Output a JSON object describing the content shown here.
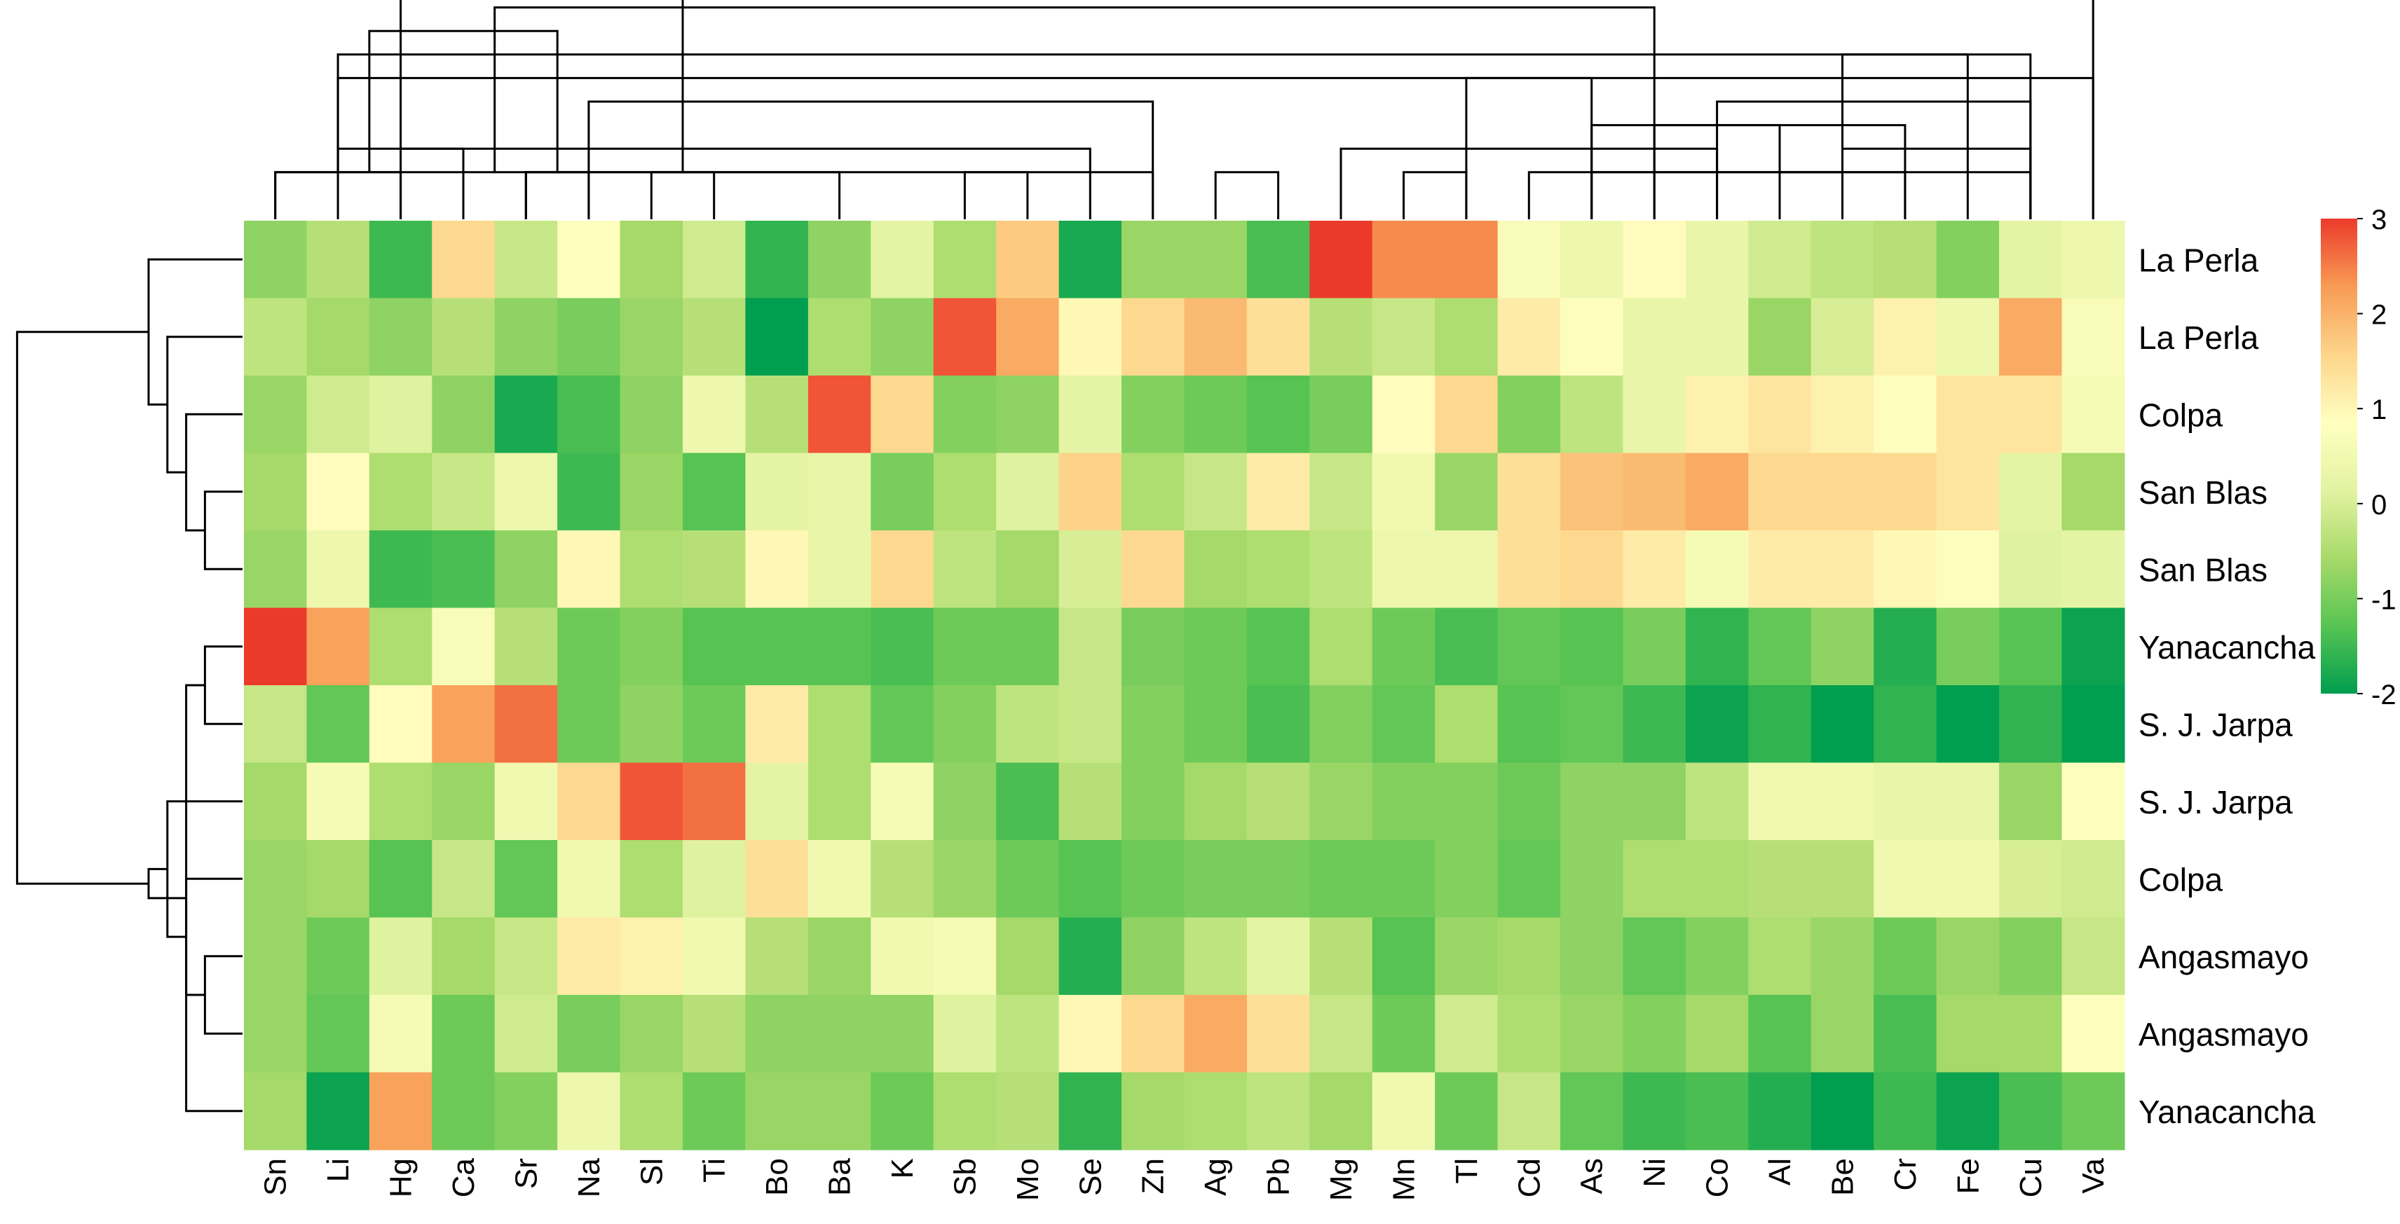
{
  "chart_data": {
    "type": "heatmap",
    "title": "",
    "columns": [
      "Sn",
      "Li",
      "Hg",
      "Ca",
      "Sr",
      "Na",
      "Sl",
      "Ti",
      "Bo",
      "Ba",
      "K",
      "Sb",
      "Mo",
      "Se",
      "Zn",
      "Ag",
      "Pb",
      "Mg",
      "Mn",
      "Tl",
      "Cd",
      "As",
      "Ni",
      "Co",
      "Al",
      "Be",
      "Cr",
      "Fe",
      "Cu",
      "Va"
    ],
    "rows": [
      "La Perla",
      "La Perla",
      "Colpa",
      "San Blas",
      "San Blas",
      "Yanacancha",
      "S. J. Jarpa",
      "S. J. Jarpa",
      "Colpa",
      "Angasmayo",
      "Angasmayo",
      "Yanacancha"
    ],
    "values": [
      [
        -0.8,
        -0.4,
        -1.5,
        1.5,
        -0.2,
        0.8,
        -0.6,
        -0.1,
        -1.6,
        -0.8,
        0.2,
        -0.5,
        1.7,
        -1.8,
        -0.7,
        -0.7,
        -1.4,
        3.0,
        2.4,
        2.4,
        0.7,
        0.4,
        0.9,
        0.3,
        -0.1,
        -0.3,
        -0.4,
        -0.9,
        0.2,
        0.4
      ],
      [
        -0.3,
        -0.6,
        -0.8,
        -0.4,
        -0.8,
        -1.0,
        -0.7,
        -0.4,
        -2.0,
        -0.5,
        -0.8,
        2.8,
        2.1,
        1.0,
        1.5,
        1.9,
        1.4,
        -0.4,
        -0.2,
        -0.5,
        1.2,
        0.8,
        0.3,
        0.3,
        -0.7,
        0.0,
        1.1,
        0.4,
        2.1,
        0.7
      ],
      [
        -0.7,
        -0.1,
        0.1,
        -0.8,
        -1.8,
        -1.4,
        -0.8,
        0.4,
        -0.4,
        2.8,
        1.5,
        -0.9,
        -0.8,
        0.2,
        -0.9,
        -1.1,
        -1.3,
        -1.0,
        0.9,
        1.5,
        -0.9,
        -0.3,
        0.3,
        1.1,
        1.3,
        1.1,
        0.8,
        1.3,
        1.3,
        0.6
      ],
      [
        -0.6,
        0.9,
        -0.5,
        -0.2,
        0.4,
        -1.5,
        -0.7,
        -1.3,
        0.2,
        0.3,
        -1.0,
        -0.5,
        0.1,
        1.6,
        -0.5,
        -0.2,
        1.2,
        -0.2,
        0.5,
        -0.7,
        1.4,
        1.8,
        1.9,
        2.1,
        1.5,
        1.5,
        1.5,
        1.3,
        0.2,
        -0.6
      ],
      [
        -0.7,
        0.4,
        -1.5,
        -1.4,
        -0.8,
        1.0,
        -0.5,
        -0.4,
        1.0,
        0.3,
        1.5,
        -0.3,
        -0.6,
        0.0,
        1.5,
        -0.6,
        -0.5,
        -0.3,
        0.4,
        0.4,
        1.4,
        1.5,
        1.2,
        0.6,
        1.2,
        1.2,
        1.0,
        0.8,
        0.1,
        0.2
      ],
      [
        3.0,
        2.2,
        -0.5,
        0.7,
        -0.4,
        -1.1,
        -0.9,
        -1.3,
        -1.3,
        -1.3,
        -1.4,
        -1.1,
        -1.1,
        -0.2,
        -1.0,
        -1.1,
        -1.3,
        -0.5,
        -1.1,
        -1.4,
        -1.2,
        -1.3,
        -1.0,
        -1.6,
        -1.2,
        -0.8,
        -1.7,
        -1.0,
        -1.3,
        -1.9
      ],
      [
        -0.2,
        -1.2,
        0.9,
        2.2,
        2.6,
        -1.1,
        -0.8,
        -1.1,
        1.2,
        -0.5,
        -1.2,
        -0.9,
        -0.3,
        -0.2,
        -0.9,
        -1.1,
        -1.4,
        -0.9,
        -1.2,
        -0.5,
        -1.3,
        -1.2,
        -1.5,
        -1.9,
        -1.6,
        -2.0,
        -1.6,
        -2.0,
        -1.6,
        -2.3
      ],
      [
        -0.6,
        0.6,
        -0.5,
        -0.7,
        0.5,
        1.5,
        2.8,
        2.6,
        0.2,
        -0.5,
        0.6,
        -0.8,
        -1.4,
        -0.4,
        -0.9,
        -0.6,
        -0.4,
        -0.7,
        -0.9,
        -0.9,
        -1.1,
        -0.8,
        -0.8,
        -0.3,
        0.5,
        0.5,
        0.3,
        0.3,
        -0.7,
        0.8
      ],
      [
        -0.7,
        -0.6,
        -1.3,
        -0.2,
        -1.2,
        0.5,
        -0.5,
        0.1,
        1.4,
        0.5,
        -0.4,
        -0.7,
        -1.1,
        -1.3,
        -1.1,
        -1.0,
        -1.0,
        -1.1,
        -1.1,
        -0.9,
        -1.2,
        -0.8,
        -0.5,
        -0.5,
        -0.4,
        -0.4,
        0.5,
        0.5,
        0.0,
        -0.1
      ],
      [
        -0.7,
        -1.1,
        0.1,
        -0.6,
        -0.2,
        1.2,
        1.1,
        0.5,
        -0.4,
        -0.7,
        0.5,
        0.6,
        -0.6,
        -1.7,
        -0.8,
        -0.3,
        0.2,
        -0.4,
        -1.3,
        -0.7,
        -0.6,
        -0.8,
        -1.2,
        -0.9,
        -0.5,
        -0.7,
        -1.1,
        -0.7,
        -0.9,
        -0.2
      ],
      [
        -0.7,
        -1.2,
        0.6,
        -1.1,
        -0.1,
        -1.0,
        -0.7,
        -0.4,
        -0.8,
        -0.8,
        -0.8,
        0.1,
        -0.3,
        1.0,
        1.5,
        2.1,
        1.4,
        -0.2,
        -1.1,
        -0.1,
        -0.5,
        -0.7,
        -0.9,
        -0.6,
        -1.3,
        -0.7,
        -1.4,
        -0.6,
        -0.6,
        0.8
      ],
      [
        -0.6,
        -1.9,
        2.2,
        -1.1,
        -0.9,
        0.4,
        -0.5,
        -1.1,
        -0.7,
        -0.7,
        -1.1,
        -0.5,
        -0.4,
        -1.6,
        -0.6,
        -0.5,
        -0.3,
        -0.6,
        0.5,
        -1.1,
        -0.2,
        -1.2,
        -1.5,
        -1.4,
        -1.7,
        -2.0,
        -1.5,
        -1.9,
        -1.4,
        -1.1
      ]
    ],
    "color_scale": {
      "min": -2,
      "max": 3,
      "ticks": [
        "3",
        "2",
        "1",
        "0",
        "-1",
        "-2"
      ],
      "colors": [
        "#009E4F",
        "#58C453",
        "#A8DA6A",
        "#E3F3A2",
        "#FFFFC0",
        "#FDD58B",
        "#F89B55",
        "#EC3A2A"
      ]
    },
    "col_dendrogram": [
      [
        0,
        4,
        3,
        2
      ],
      [
        1,
        0,
        2,
        2
      ],
      [
        2,
        0,
        3,
        2
      ],
      [
        3,
        5,
        4,
        2
      ],
      [
        4,
        1,
        3,
        3
      ],
      [
        5,
        6,
        7,
        2
      ],
      [
        6,
        9,
        4,
        2
      ],
      [
        7,
        14,
        4,
        2
      ],
      [
        8,
        16,
        15,
        2
      ],
      [
        9,
        19,
        18,
        2
      ],
      [
        10,
        20,
        25,
        2
      ],
      [
        11,
        11,
        12,
        2
      ],
      [
        12,
        13,
        2,
        3
      ],
      [
        13,
        14,
        5,
        5
      ],
      [
        14,
        17,
        23,
        3
      ],
      [
        15,
        24,
        28,
        2
      ],
      [
        16,
        21,
        26,
        2
      ],
      [
        17,
        24,
        21,
        4
      ],
      [
        18,
        25,
        28,
        3
      ],
      [
        19,
        26,
        22,
        4
      ],
      [
        20,
        23,
        28,
        5
      ],
      [
        21,
        27,
        25,
        7
      ],
      [
        22,
        29,
        19,
        6
      ],
      [
        23,
        22,
        30,
        9
      ],
      [
        24,
        31,
        28,
        7
      ],
      [
        25,
        32,
        33,
        8
      ],
      [
        26,
        31,
        21,
        6
      ],
      [
        27,
        34,
        29,
        12
      ],
      [
        28,
        36,
        35,
        15
      ]
    ],
    "row_dendrogram": [
      [
        3,
        4,
        2
      ],
      [
        2,
        12,
        3
      ],
      [
        1,
        13,
        4
      ],
      [
        0,
        14,
        5
      ],
      [
        9,
        10,
        2
      ],
      [
        8,
        16,
        3
      ],
      [
        7,
        17,
        4
      ],
      [
        5,
        6,
        2
      ],
      [
        19,
        11,
        3
      ],
      [
        20,
        18,
        5
      ],
      [
        15,
        21,
        12
      ]
    ]
  }
}
